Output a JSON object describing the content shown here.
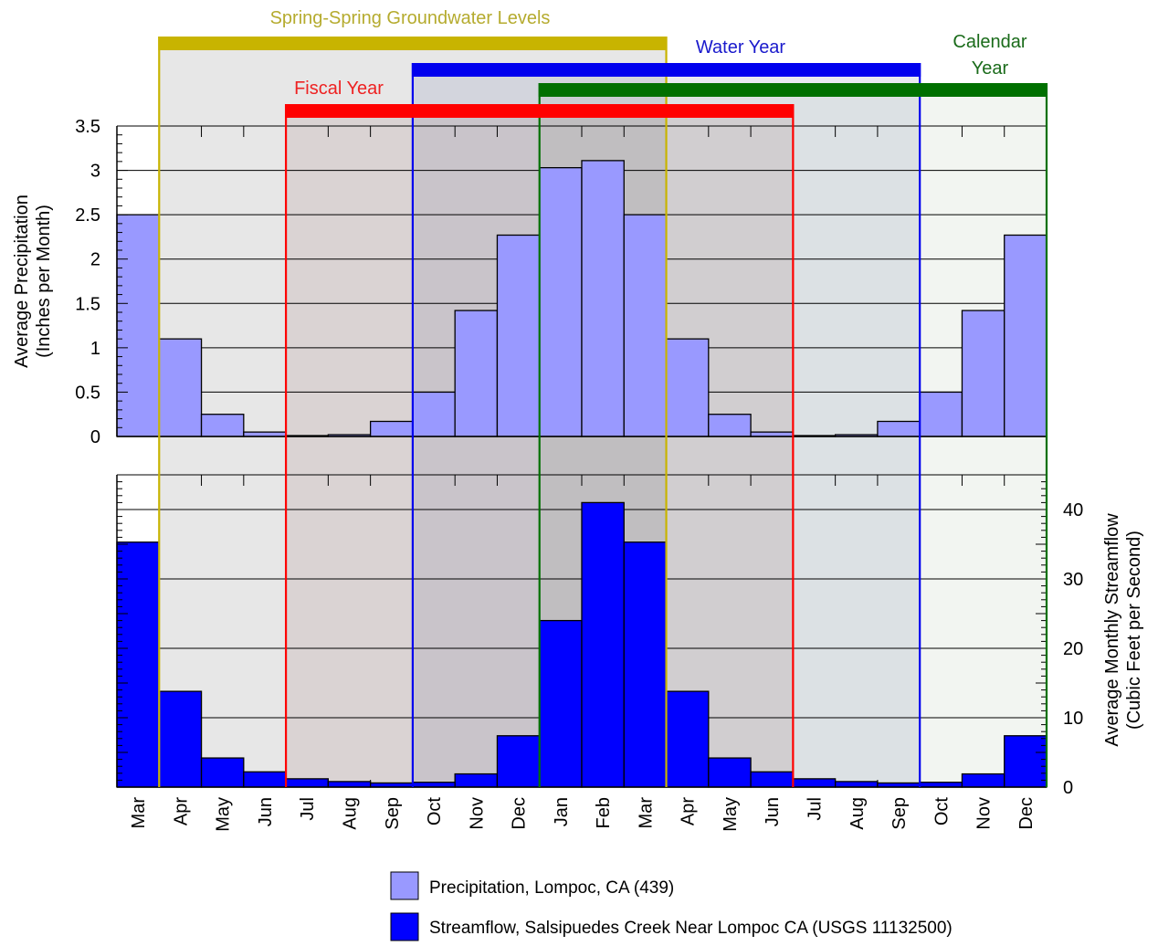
{
  "chart_data": {
    "type": "bar",
    "categories": [
      "Mar",
      "Apr",
      "May",
      "Jun",
      "Jul",
      "Aug",
      "Sep",
      "Oct",
      "Nov",
      "Dec",
      "Jan",
      "Feb",
      "Mar",
      "Apr",
      "May",
      "Jun",
      "Jul",
      "Aug",
      "Sep",
      "Oct",
      "Nov",
      "Dec"
    ],
    "top_chart": {
      "ylabel_line1": "Average Precipitation",
      "ylabel_line2": "(Inches per Month)",
      "ylim": [
        0,
        3.5
      ],
      "yticks": [
        0,
        0.5,
        1,
        1.5,
        2,
        2.5,
        3,
        3.5
      ],
      "ytick_labels": [
        "0",
        "0.5",
        "1",
        "1.5",
        "2",
        "2.5",
        "3",
        "3.5"
      ],
      "series": [
        {
          "name": "Precipitation, Lompoc, CA (439)",
          "color": "#9999ff",
          "values": [
            2.5,
            1.1,
            0.25,
            0.05,
            0.01,
            0.02,
            0.17,
            0.5,
            1.42,
            2.27,
            3.03,
            3.11,
            2.5,
            1.1,
            0.25,
            0.05,
            0.01,
            0.02,
            0.17,
            0.5,
            1.42,
            2.27
          ]
        }
      ]
    },
    "bottom_chart": {
      "ylabel_line1": "Average Monthly Streamflow",
      "ylabel_line2": "(Cubic Feet per Second)",
      "ylim": [
        0,
        45
      ],
      "yticks": [
        0,
        10,
        20,
        30,
        40
      ],
      "ytick_labels": [
        "0",
        "10",
        "20",
        "30",
        "40"
      ],
      "series": [
        {
          "name": "Streamflow, Salsipuedes Creek Near Lompoc CA (USGS 11132500)",
          "color": "#0000ff",
          "values": [
            35.3,
            13.8,
            4.2,
            2.2,
            1.2,
            0.8,
            0.6,
            0.7,
            1.9,
            7.4,
            24,
            41,
            35.3,
            13.8,
            4.2,
            2.2,
            1.2,
            0.8,
            0.6,
            0.7,
            1.9,
            7.4
          ]
        }
      ]
    },
    "periods": [
      {
        "label": "Spring-Spring Groundwater Levels",
        "color": "#c8b400",
        "text_color": "#b5ab2e",
        "start_index": 1,
        "end_index": 13
      },
      {
        "label": "Water Year",
        "color": "#0000ee",
        "text_color": "#1a1acc",
        "start_index": 7,
        "end_index": 19
      },
      {
        "label": "Calendar Year",
        "label_line1": "Calendar",
        "label_line2": "Year",
        "color": "#007000",
        "text_color": "#1a6b1a",
        "start_index": 10,
        "end_index": 22
      },
      {
        "label": "Fiscal Year",
        "color": "#ff0000",
        "text_color": "#ee2222",
        "start_index": 4,
        "end_index": 16
      }
    ],
    "legend": [
      {
        "label": "Precipitation, Lompoc, CA (439)",
        "color": "#9999ff"
      },
      {
        "label": "Streamflow, Salsipuedes Creek Near Lompoc CA (USGS 11132500)",
        "color": "#0000ff"
      }
    ],
    "legend_position": "bottom-center"
  }
}
